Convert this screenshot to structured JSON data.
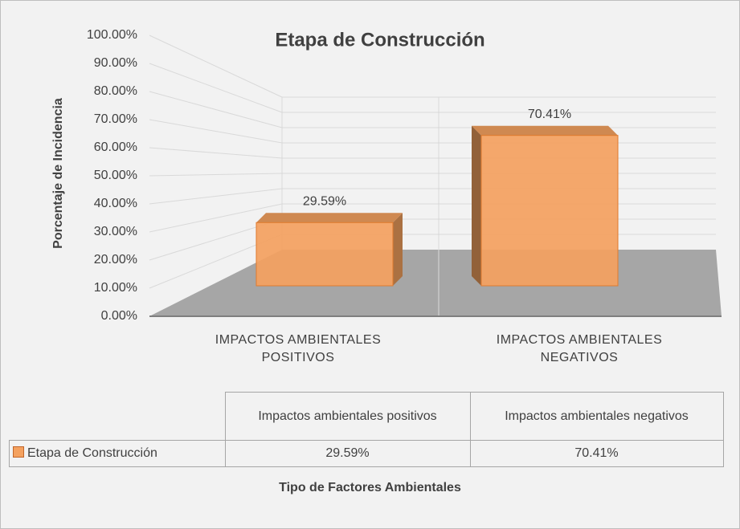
{
  "chart_data": {
    "type": "bar",
    "title": "Etapa de Construcción",
    "y_label": "Porcentaje de Incidencia",
    "x_label": "Tipo de Factores Ambientales",
    "categories": [
      "IMPACTOS AMBIENTALES POSITIVOS",
      "IMPACTOS AMBIENTALES NEGATIVOS"
    ],
    "series": [
      {
        "name": "Etapa de Construcción",
        "color": "#f4a15f",
        "values": [
          29.59,
          70.41
        ],
        "value_labels": [
          "29.59%",
          "70.41%"
        ]
      }
    ],
    "ylim": [
      0,
      100
    ],
    "yticks": [
      {
        "value": 0,
        "label": "0.00%"
      },
      {
        "value": 10,
        "label": "10.00%"
      },
      {
        "value": 20,
        "label": "20.00%"
      },
      {
        "value": 30,
        "label": "30.00%"
      },
      {
        "value": 40,
        "label": "40.00%"
      },
      {
        "value": 50,
        "label": "50.00%"
      },
      {
        "value": 60,
        "label": "60.00%"
      },
      {
        "value": 70,
        "label": "70.00%"
      },
      {
        "value": 80,
        "label": "80.00%"
      },
      {
        "value": 90,
        "label": "90.00%"
      },
      {
        "value": 100,
        "label": "100.00%"
      }
    ],
    "grid": true,
    "data_table": {
      "columns": [
        "Impactos ambientales positivos",
        "Impactos ambientales negativos"
      ]
    }
  }
}
